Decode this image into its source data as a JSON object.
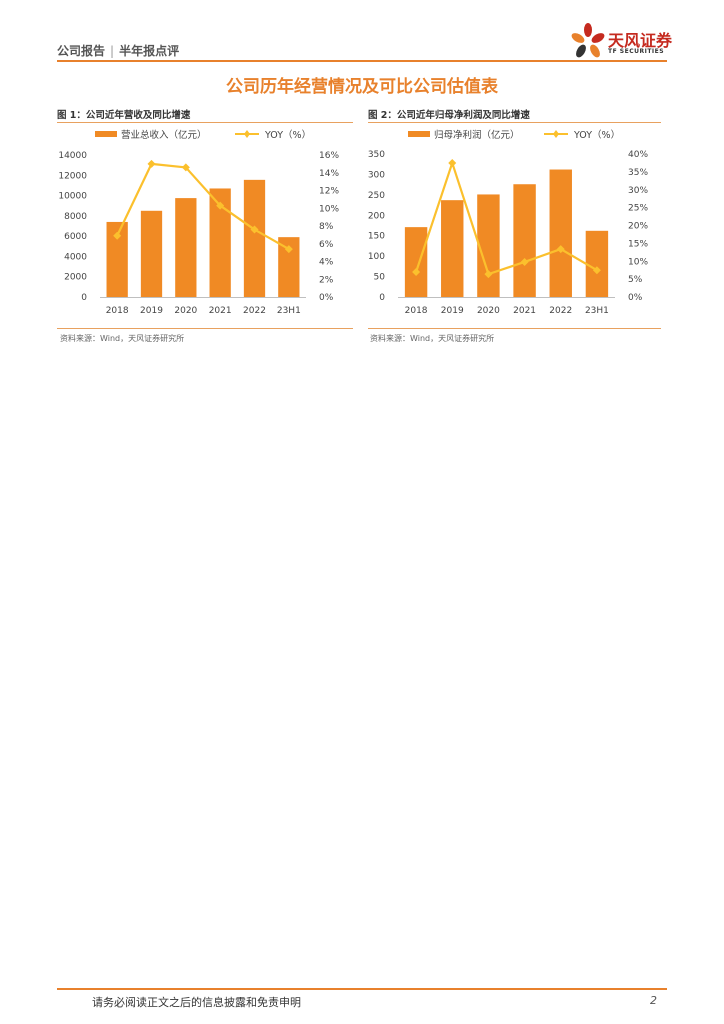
{
  "header": {
    "report_type": "公司报告",
    "report_subtype": "半年报点评",
    "logo_cn": "天风证券",
    "logo_en": "TF SECURITIES"
  },
  "page_title": "公司历年经营情况及可比公司估值表",
  "figures": [
    {
      "title": "图 1：公司近年营收及同比增速",
      "source": "资料来源：Wind，天风证券研究所"
    },
    {
      "title": "图 2：公司近年归母净利润及同比增速",
      "source": "资料来源：Wind，天风证券研究所"
    }
  ],
  "chart_data": [
    {
      "type": "bar",
      "categories": [
        "2018",
        "2019",
        "2020",
        "2021",
        "2022",
        "23H1"
      ],
      "series": [
        {
          "name": "营业总收入（亿元）",
          "type": "bar",
          "axis": "left",
          "values": [
            7400,
            8500,
            9750,
            10700,
            11550,
            5900
          ]
        },
        {
          "name": "YOY（%）",
          "type": "line",
          "axis": "right",
          "values": [
            6.9,
            15.0,
            14.6,
            10.3,
            7.6,
            5.4
          ]
        }
      ],
      "y_left": {
        "ylim": [
          0,
          14000
        ],
        "ticks": [
          "0",
          "2000",
          "4000",
          "6000",
          "8000",
          "10000",
          "12000",
          "14000"
        ]
      },
      "y_right": {
        "ylim": [
          0,
          16
        ],
        "ticks": [
          "0%",
          "2%",
          "4%",
          "6%",
          "8%",
          "10%",
          "12%",
          "14%",
          "16%"
        ]
      },
      "grid": false,
      "legend": "top",
      "colors": {
        "bar": "#f08a24",
        "line": "#fbc02d"
      }
    },
    {
      "type": "bar",
      "categories": [
        "2018",
        "2019",
        "2020",
        "2021",
        "2022",
        "23H1"
      ],
      "series": [
        {
          "name": "归母净利润（亿元）",
          "type": "bar",
          "axis": "left",
          "values": [
            171,
            237,
            251,
            276,
            312,
            162
          ]
        },
        {
          "name": "YOY（%）",
          "type": "line",
          "axis": "right",
          "values": [
            7.0,
            37.5,
            6.4,
            9.8,
            13.4,
            7.5
          ]
        }
      ],
      "y_left": {
        "ylim": [
          0,
          350
        ],
        "ticks": [
          "0",
          "50",
          "100",
          "150",
          "200",
          "250",
          "300",
          "350"
        ]
      },
      "y_right": {
        "ylim": [
          0,
          40
        ],
        "ticks": [
          "0%",
          "5%",
          "10%",
          "15%",
          "20%",
          "25%",
          "30%",
          "35%",
          "40%"
        ]
      },
      "grid": false,
      "legend": "top",
      "colors": {
        "bar": "#f08a24",
        "line": "#fbc02d"
      }
    }
  ],
  "footer": {
    "disclaimer": "请务必阅读正文之后的信息披露和免责申明",
    "page_number": "2"
  }
}
